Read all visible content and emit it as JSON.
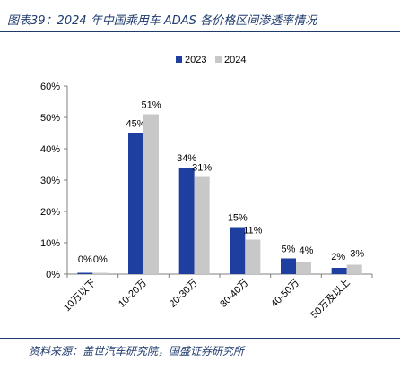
{
  "title": "图表39：2024 年中国乘用车 ADAS 各价格区间渗透率情况",
  "source": "资料来源：盖世汽车研究院，国盛证券研究所",
  "colors": {
    "series_2023": "#1f3fa0",
    "series_2024": "#c8c8c8",
    "rule": "#1f3b6d",
    "axis": "#7f7f7f"
  },
  "chart_data": {
    "type": "bar",
    "categories": [
      "10万以下",
      "10-20万",
      "20-30万",
      "30-40万",
      "40-50万",
      "50万及以上"
    ],
    "series": [
      {
        "name": "2023",
        "values": [
          0,
          45,
          34,
          15,
          5,
          2
        ],
        "labels": [
          "0%",
          "45%",
          "34%",
          "15%",
          "5%",
          "2%"
        ]
      },
      {
        "name": "2024",
        "values": [
          0,
          51,
          31,
          11,
          4,
          3
        ],
        "labels": [
          "0%",
          "51%",
          "31%",
          "11%",
          "4%",
          "3%"
        ]
      }
    ],
    "y_ticks": [
      "0%",
      "10%",
      "20%",
      "30%",
      "40%",
      "50%",
      "60%"
    ],
    "ylim": [
      0,
      60
    ],
    "legend_position": "top-center",
    "grid": false
  }
}
